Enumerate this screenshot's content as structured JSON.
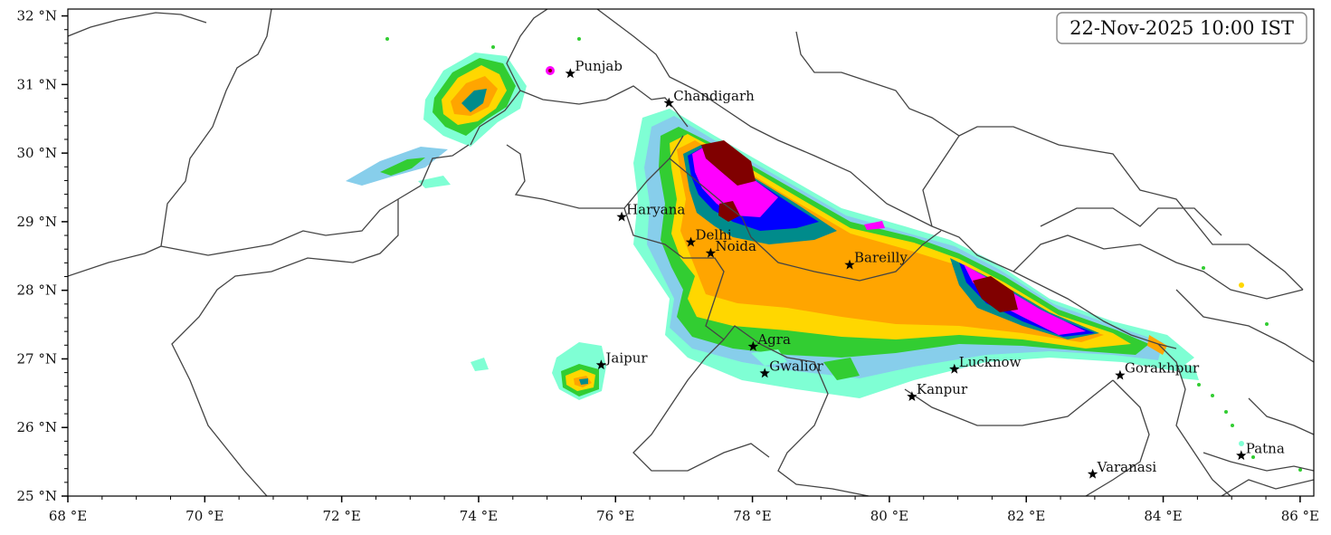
{
  "title": "22-Nov-2025 10:00 IST",
  "lon_range": [
    68,
    86.2
  ],
  "lat_range": [
    25,
    32.1
  ],
  "x_ticks": [
    {
      "value": 68,
      "label": "68 °E"
    },
    {
      "value": 70,
      "label": "70 °E"
    },
    {
      "value": 72,
      "label": "72 °E"
    },
    {
      "value": 74,
      "label": "74 °E"
    },
    {
      "value": 76,
      "label": "76 °E"
    },
    {
      "value": 78,
      "label": "78 °E"
    },
    {
      "value": 80,
      "label": "80 °E"
    },
    {
      "value": 82,
      "label": "82 °E"
    },
    {
      "value": 84,
      "label": "84 °E"
    },
    {
      "value": 86,
      "label": "86 °E"
    }
  ],
  "y_ticks": [
    {
      "value": 32,
      "label": "32 °N"
    },
    {
      "value": 31,
      "label": "31 °N"
    },
    {
      "value": 30,
      "label": "30 °N"
    },
    {
      "value": 29,
      "label": "29 °N"
    },
    {
      "value": 28,
      "label": "28 °N"
    },
    {
      "value": 27,
      "label": "27 °N"
    },
    {
      "value": 26,
      "label": "26 °N"
    },
    {
      "value": 25,
      "label": "25 °N"
    }
  ],
  "cities": [
    {
      "name": "Punjab",
      "lon": 75.34,
      "lat": 31.16
    },
    {
      "name": "Chandigarh",
      "lon": 76.78,
      "lat": 30.73
    },
    {
      "name": "Haryana",
      "lon": 76.09,
      "lat": 29.07
    },
    {
      "name": "Delhi",
      "lon": 77.1,
      "lat": 28.7
    },
    {
      "name": "Noida",
      "lon": 77.39,
      "lat": 28.54
    },
    {
      "name": "Bareilly",
      "lon": 79.42,
      "lat": 28.37
    },
    {
      "name": "Jaipur",
      "lon": 75.79,
      "lat": 26.91
    },
    {
      "name": "Agra",
      "lon": 78.01,
      "lat": 27.18
    },
    {
      "name": "Gwalior",
      "lon": 78.18,
      "lat": 26.79
    },
    {
      "name": "Lucknow",
      "lon": 80.95,
      "lat": 26.85
    },
    {
      "name": "Kanpur",
      "lon": 80.33,
      "lat": 26.45
    },
    {
      "name": "Gorakhpur",
      "lon": 83.37,
      "lat": 26.76
    },
    {
      "name": "Varanasi",
      "lon": 82.97,
      "lat": 25.32
    },
    {
      "name": "Patna",
      "lon": 85.14,
      "lat": 25.59
    }
  ],
  "colors": {
    "level1": "#7fffd4",
    "level2": "#87ceeb",
    "level3": "#32cd32",
    "level4": "#ffd700",
    "level5": "#ffa500",
    "level6": "#008b8b",
    "level7": "#0000ff",
    "level8": "#ff00ff",
    "level9": "#800000",
    "boundary": "#444444"
  }
}
